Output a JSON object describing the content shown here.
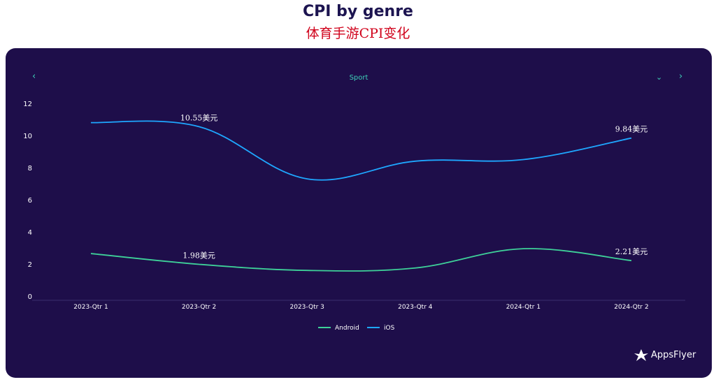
{
  "header": {
    "title": "CPI by genre",
    "subtitle": "体育手游CPI变化"
  },
  "panel": {
    "genre": "Sport",
    "nav_prev_icon": "chevron-left-icon",
    "nav_dropdown_icon": "chevron-down-icon",
    "nav_next_icon": "chevron-right-icon",
    "logo_text": "AppsFlyer",
    "logo_icon": "appsflyer-logo-icon"
  },
  "colors": {
    "background": "#1e0e4a",
    "android": "#3ed199",
    "ios": "#1ea7ff",
    "accent": "#3ed1b8"
  },
  "chart_data": {
    "type": "line",
    "title": "",
    "xlabel": "",
    "ylabel": "",
    "categories": [
      "2023-Qtr 1",
      "2023-Qtr 2",
      "2023-Qtr 3",
      "2023-Qtr 4",
      "2024-Qtr 1",
      "2024-Qtr 2"
    ],
    "yticks": [
      "0",
      "2",
      "4",
      "6",
      "8",
      "10",
      "12"
    ],
    "ylim": [
      0,
      12
    ],
    "grid": false,
    "legend_position": "bottom",
    "series": [
      {
        "name": "Android",
        "color": "#3ed199",
        "values": [
          2.65,
          1.98,
          1.6,
          1.75,
          2.95,
          2.21
        ],
        "annotations": [
          {
            "index": 1,
            "label": "1.98美元"
          },
          {
            "index": 5,
            "label": "2.21美元"
          }
        ]
      },
      {
        "name": "iOS",
        "color": "#1ea7ff",
        "values": [
          10.8,
          10.55,
          7.3,
          8.4,
          8.5,
          9.84
        ],
        "annotations": [
          {
            "index": 1,
            "label": "10.55美元"
          },
          {
            "index": 5,
            "label": "9.84美元"
          }
        ]
      }
    ]
  }
}
